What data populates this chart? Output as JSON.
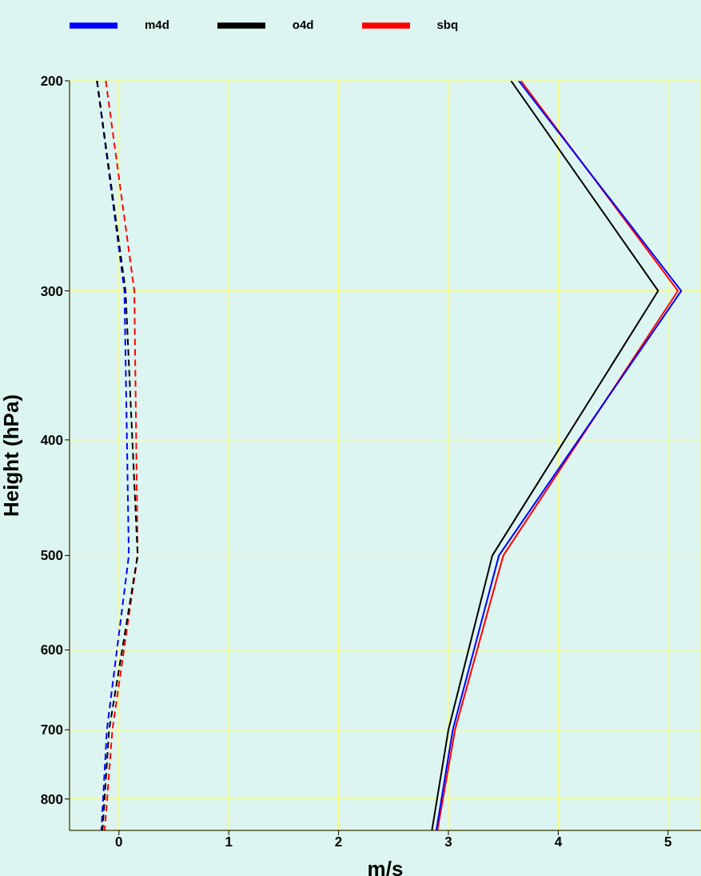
{
  "chart_data": {
    "type": "line",
    "xlabel": "m/s",
    "ylabel": "Height (hPa)",
    "log": "y",
    "ylim": [
      850,
      200
    ],
    "yticks": [
      200,
      300,
      400,
      500,
      600,
      700,
      800
    ],
    "xlim": [
      -0.45,
      5.3
    ],
    "xticks": [
      0,
      1,
      2,
      3,
      4,
      5
    ],
    "grid": true,
    "legend": "top",
    "series": [
      {
        "name": "sbq",
        "color": "#ff0000",
        "line_style": "solid",
        "x": [
          3.66,
          5.09,
          3.5,
          3.06,
          2.9
        ],
        "values": [
          200,
          300,
          500,
          700,
          850
        ]
      },
      {
        "name": "m4d",
        "color": "#0000ff",
        "line_style": "solid",
        "x": [
          3.64,
          5.12,
          3.46,
          3.04,
          2.89
        ],
        "values": [
          200,
          300,
          500,
          700,
          850
        ]
      },
      {
        "name": "o4d",
        "color": "#000000",
        "line_style": "solid",
        "x": [
          3.57,
          4.91,
          3.4,
          3.0,
          2.85
        ],
        "values": [
          200,
          300,
          500,
          700,
          850
        ]
      },
      {
        "color": "#ff0000",
        "line_style": "dashed",
        "x": [
          -0.12,
          0.14,
          0.17,
          -0.06,
          -0.13
        ],
        "values": [
          200,
          300,
          500,
          700,
          850
        ]
      },
      {
        "color": "#0000ff",
        "line_style": "dashed",
        "x": [
          -0.2,
          0.05,
          0.09,
          -0.11,
          -0.16
        ],
        "values": [
          200,
          300,
          500,
          700,
          850
        ]
      },
      {
        "color": "#000000",
        "line_style": "dashed",
        "x": [
          -0.2,
          0.06,
          0.17,
          -0.09,
          -0.15
        ],
        "values": [
          200,
          300,
          500,
          700,
          850
        ]
      }
    ]
  }
}
